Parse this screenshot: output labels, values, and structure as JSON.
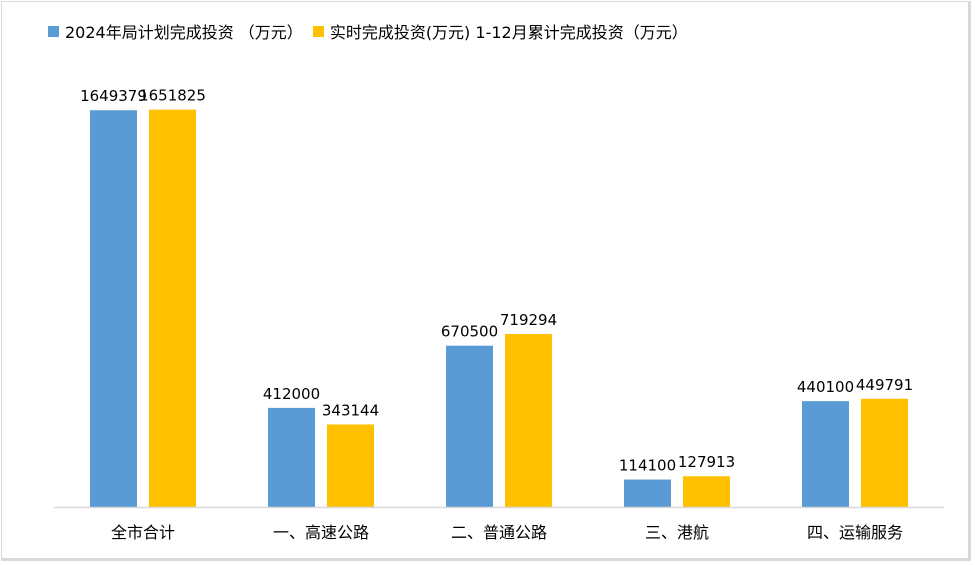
{
  "chart_data": {
    "type": "bar",
    "title": "",
    "xlabel": "",
    "ylabel": "",
    "ylim": [
      0,
      1800000
    ],
    "grid": false,
    "legend_position": "top-left",
    "categories": [
      "全市合计",
      "一、高速公路",
      "二、普通公路",
      "三、港航",
      "四、运输服务"
    ],
    "series": [
      {
        "name": "2024年局计划完成投资 （万元）",
        "color": "#5B9BD5",
        "values": [
          1649379,
          412000,
          670500,
          114100,
          440100
        ]
      },
      {
        "name": "实时完成投资(万元) 1-12月累计完成投资（万元）",
        "color": "#FFC000",
        "values": [
          1651825,
          343144,
          719294,
          127913,
          449791
        ]
      }
    ]
  }
}
